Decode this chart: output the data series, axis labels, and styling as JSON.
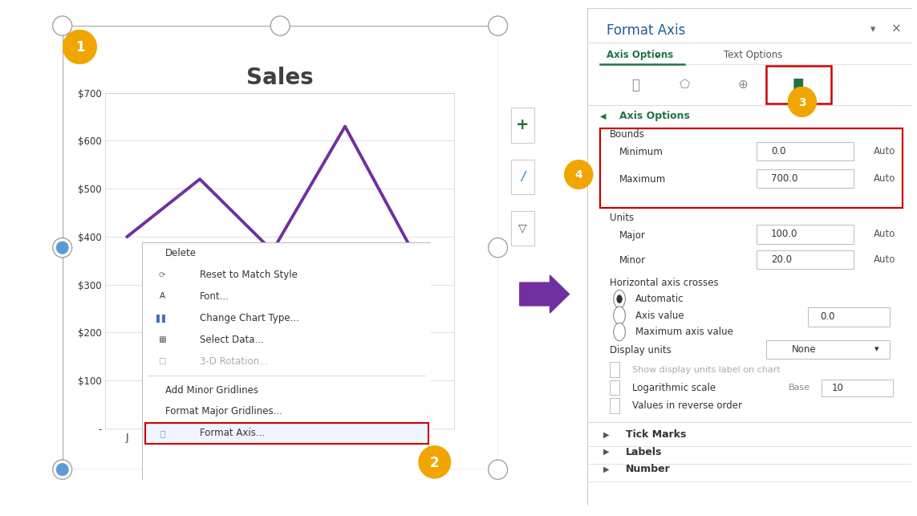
{
  "chart_title": "Sales",
  "line_x": [
    0,
    1,
    2,
    3,
    4
  ],
  "line_y": [
    400,
    520,
    370,
    630,
    350
  ],
  "line_color": "#7030A0",
  "line_width": 2.8,
  "chart_bg": "#FFFFFF",
  "fig_bg": "#FFFFFF",
  "grid_color": "#E0E0E0",
  "y_ticks": [
    0,
    100,
    200,
    300,
    400,
    500,
    600,
    700
  ],
  "y_tick_labels": [
    "-",
    "$100",
    "$200",
    "$300",
    "$400",
    "$500",
    "$600",
    "$700"
  ],
  "title_fontsize": 20,
  "arrow_color": "#7030A0",
  "panel_green": "#217346",
  "badge_color": "#F0A500",
  "badge_text_color": "#FFFFFF",
  "red_color": "#CC0000",
  "bounds_min_val": "0.0",
  "bounds_max_val": "700.0",
  "units_major": "100.0",
  "units_minor": "20.0",
  "axis_value_field": "0.0",
  "handle_color": "#AAAAAA",
  "handle_fill": "#FFFFFF",
  "blue_handle": "#5B9BD5"
}
